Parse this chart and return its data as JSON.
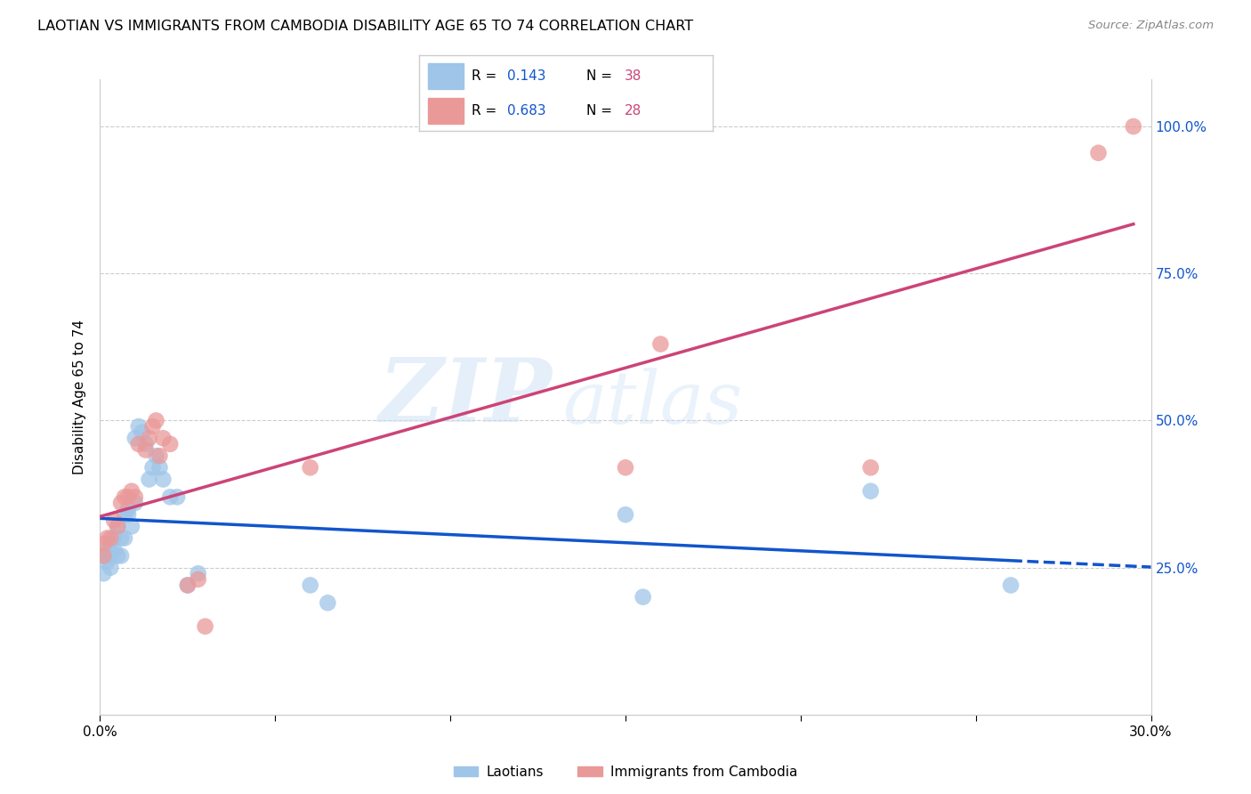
{
  "title": "LAOTIAN VS IMMIGRANTS FROM CAMBODIA DISABILITY AGE 65 TO 74 CORRELATION CHART",
  "source": "Source: ZipAtlas.com",
  "ylabel": "Disability Age 65 to 74",
  "legend_label1": "Laotians",
  "legend_label2": "Immigrants from Cambodia",
  "r1": "0.143",
  "n1": "38",
  "r2": "0.683",
  "n2": "28",
  "color_blue": "#9fc5e8",
  "color_pink": "#ea9999",
  "line_blue": "#1155cc",
  "line_pink": "#cc4477",
  "xlim": [
    0.0,
    0.3
  ],
  "ylim": [
    0.0,
    1.08
  ],
  "xticks": [
    0.0,
    0.05,
    0.1,
    0.15,
    0.2,
    0.25,
    0.3
  ],
  "yticks": [
    0.25,
    0.5,
    0.75,
    1.0
  ],
  "ytick_labels": [
    "25.0%",
    "50.0%",
    "75.0%",
    "100.0%"
  ],
  "blue_x": [
    0.001,
    0.001,
    0.002,
    0.002,
    0.003,
    0.003,
    0.003,
    0.004,
    0.004,
    0.005,
    0.005,
    0.006,
    0.006,
    0.007,
    0.007,
    0.008,
    0.008,
    0.009,
    0.01,
    0.01,
    0.011,
    0.012,
    0.013,
    0.014,
    0.015,
    0.016,
    0.017,
    0.018,
    0.02,
    0.022,
    0.025,
    0.028,
    0.06,
    0.065,
    0.15,
    0.155,
    0.22,
    0.26
  ],
  "blue_y": [
    0.27,
    0.24,
    0.28,
    0.26,
    0.29,
    0.27,
    0.25,
    0.28,
    0.3,
    0.27,
    0.32,
    0.3,
    0.27,
    0.34,
    0.3,
    0.35,
    0.34,
    0.32,
    0.47,
    0.36,
    0.49,
    0.48,
    0.46,
    0.4,
    0.42,
    0.44,
    0.42,
    0.4,
    0.37,
    0.37,
    0.22,
    0.24,
    0.22,
    0.19,
    0.34,
    0.2,
    0.38,
    0.22
  ],
  "pink_x": [
    0.001,
    0.001,
    0.002,
    0.003,
    0.004,
    0.005,
    0.006,
    0.007,
    0.008,
    0.009,
    0.01,
    0.011,
    0.013,
    0.014,
    0.015,
    0.016,
    0.017,
    0.018,
    0.02,
    0.025,
    0.028,
    0.03,
    0.06,
    0.15,
    0.16,
    0.22,
    0.285,
    0.295
  ],
  "pink_y": [
    0.29,
    0.27,
    0.3,
    0.3,
    0.33,
    0.32,
    0.36,
    0.37,
    0.37,
    0.38,
    0.37,
    0.46,
    0.45,
    0.47,
    0.49,
    0.5,
    0.44,
    0.47,
    0.46,
    0.22,
    0.23,
    0.15,
    0.42,
    0.42,
    0.63,
    0.42,
    0.955,
    1.0
  ],
  "watermark_zip_color": "#cce0f5",
  "watermark_atlas_color": "#cce0f5",
  "grid_color": "#cccccc",
  "spine_color": "#cccccc"
}
